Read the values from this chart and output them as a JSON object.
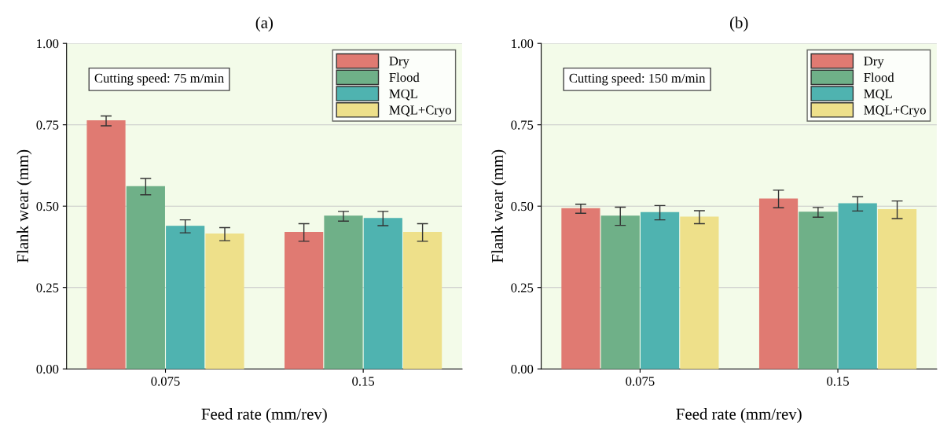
{
  "chart_data": [
    {
      "type": "bar",
      "title": "(a)",
      "xlabel": "Feed rate (mm/rev)",
      "ylabel": "Flank wear (mm)",
      "categories": [
        "0.075",
        "0.15"
      ],
      "ylim": [
        0,
        1
      ],
      "yticks": [
        {
          "value": 0,
          "label": "0.00"
        },
        {
          "value": 0.25,
          "label": "0.25"
        },
        {
          "value": 0.5,
          "label": "0.50"
        },
        {
          "value": 0.75,
          "label": "0.75"
        },
        {
          "value": 1,
          "label": "1.00"
        }
      ],
      "grid": "y",
      "legend": "top right",
      "annotations": [
        "Cutting speed: 75 m/min"
      ],
      "series": [
        {
          "name": "Dry",
          "color": "#e07a72",
          "values": [
            0.762,
            0.419
          ],
          "errors": [
            0.015,
            0.027
          ]
        },
        {
          "name": "Flood",
          "color": "#6fb088",
          "values": [
            0.56,
            0.469
          ],
          "errors": [
            0.025,
            0.015
          ]
        },
        {
          "name": "MQL",
          "color": "#4fb3b0",
          "values": [
            0.438,
            0.462
          ],
          "errors": [
            0.02,
            0.022
          ]
        },
        {
          "name": "MQL+Cryo",
          "color": "#eee08a",
          "values": [
            0.414,
            0.419
          ],
          "errors": [
            0.02,
            0.027
          ]
        }
      ]
    },
    {
      "type": "bar",
      "title": "(b)",
      "xlabel": "Feed rate (mm/rev)",
      "ylabel": "Flank wear (mm)",
      "categories": [
        "0.075",
        "0.15"
      ],
      "ylim": [
        0,
        1
      ],
      "yticks": [
        {
          "value": 0,
          "label": "0.00"
        },
        {
          "value": 0.25,
          "label": "0.25"
        },
        {
          "value": 0.5,
          "label": "0.50"
        },
        {
          "value": 0.75,
          "label": "0.75"
        },
        {
          "value": 1,
          "label": "1.00"
        }
      ],
      "grid": "y",
      "legend": "top right",
      "annotations": [
        "Cutting speed: 150 m/min"
      ],
      "series": [
        {
          "name": "Dry",
          "color": "#e07a72",
          "values": [
            0.492,
            0.522
          ],
          "errors": [
            0.014,
            0.027
          ]
        },
        {
          "name": "Flood",
          "color": "#6fb088",
          "values": [
            0.469,
            0.481
          ],
          "errors": [
            0.028,
            0.015
          ]
        },
        {
          "name": "MQL",
          "color": "#4fb3b0",
          "values": [
            0.48,
            0.507
          ],
          "errors": [
            0.022,
            0.022
          ]
        },
        {
          "name": "MQL+Cryo",
          "color": "#eee08a",
          "values": [
            0.466,
            0.489
          ],
          "errors": [
            0.02,
            0.027
          ]
        }
      ]
    }
  ]
}
